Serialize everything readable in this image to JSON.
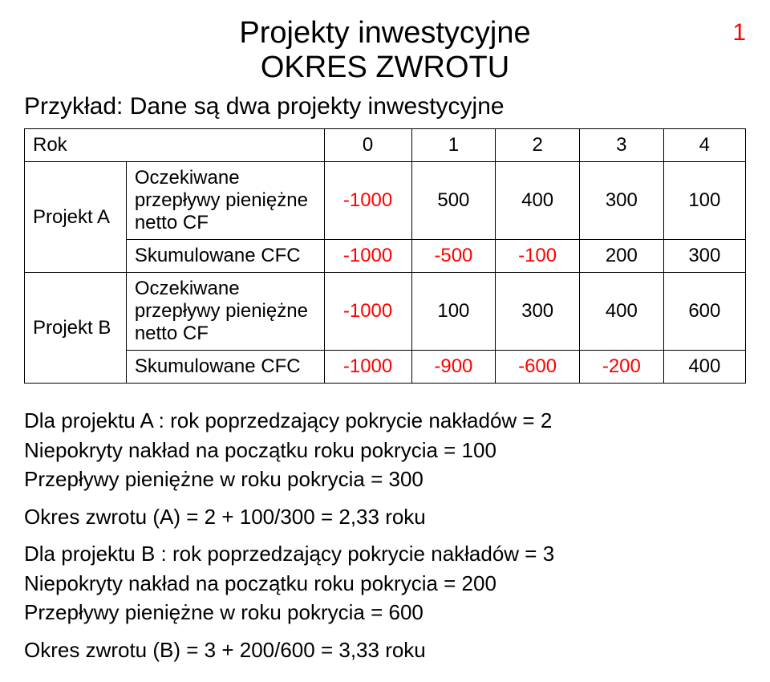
{
  "page_number": "1",
  "title_line1": "Projekty inwestycyjne",
  "title_line2": "OKRES ZWROTU",
  "subtitle": "Przykład: Dane są dwa projekty inwestycyjne",
  "table": {
    "header": {
      "rok": "Rok",
      "c0": "0",
      "c1": "1",
      "c2": "2",
      "c3": "3",
      "c4": "4"
    },
    "projA": {
      "label": "Projekt A",
      "cf_label": "Oczekiwane przepływy pieniężne netto CF",
      "cf": {
        "c0": "-1000",
        "c1": "500",
        "c2": "400",
        "c3": "300",
        "c4": "100"
      },
      "cfc_label": "Skumulowane CFC",
      "cfc": {
        "c0": "-1000",
        "c1": "-500",
        "c2": "-100",
        "c3": "200",
        "c4": "300"
      }
    },
    "projB": {
      "label": "Projekt B",
      "cf_label": "Oczekiwane przepływy pieniężne netto CF",
      "cf": {
        "c0": "-1000",
        "c1": "100",
        "c2": "300",
        "c3": "400",
        "c4": "600"
      },
      "cfc_label": "Skumulowane CFC",
      "cfc": {
        "c0": "-1000",
        "c1": "-900",
        "c2": "-600",
        "c3": "-200",
        "c4": "400"
      }
    }
  },
  "text": {
    "a1": "Dla projektu A : rok poprzedzający pokrycie nakładów = 2",
    "a2": "Niepokryty nakład na  początku roku pokrycia = 100",
    "a3": "Przepływy pieniężne w roku pokrycia = 300",
    "a4": "Okres zwrotu (A)  = 2 + 100/300 = 2,33 roku",
    "b1": "Dla projektu B : rok poprzedzający pokrycie nakładów = 3",
    "b2": "Niepokryty nakład na  początku roku pokrycia = 200",
    "b3": "Przepływy pieniężne w roku pokrycia = 600",
    "b4": "Okres zwrotu (B)  = 3 + 200/600 = 3,33 roku"
  },
  "colors": {
    "negative": "#ff0000",
    "text": "#000000",
    "background": "#ffffff"
  }
}
